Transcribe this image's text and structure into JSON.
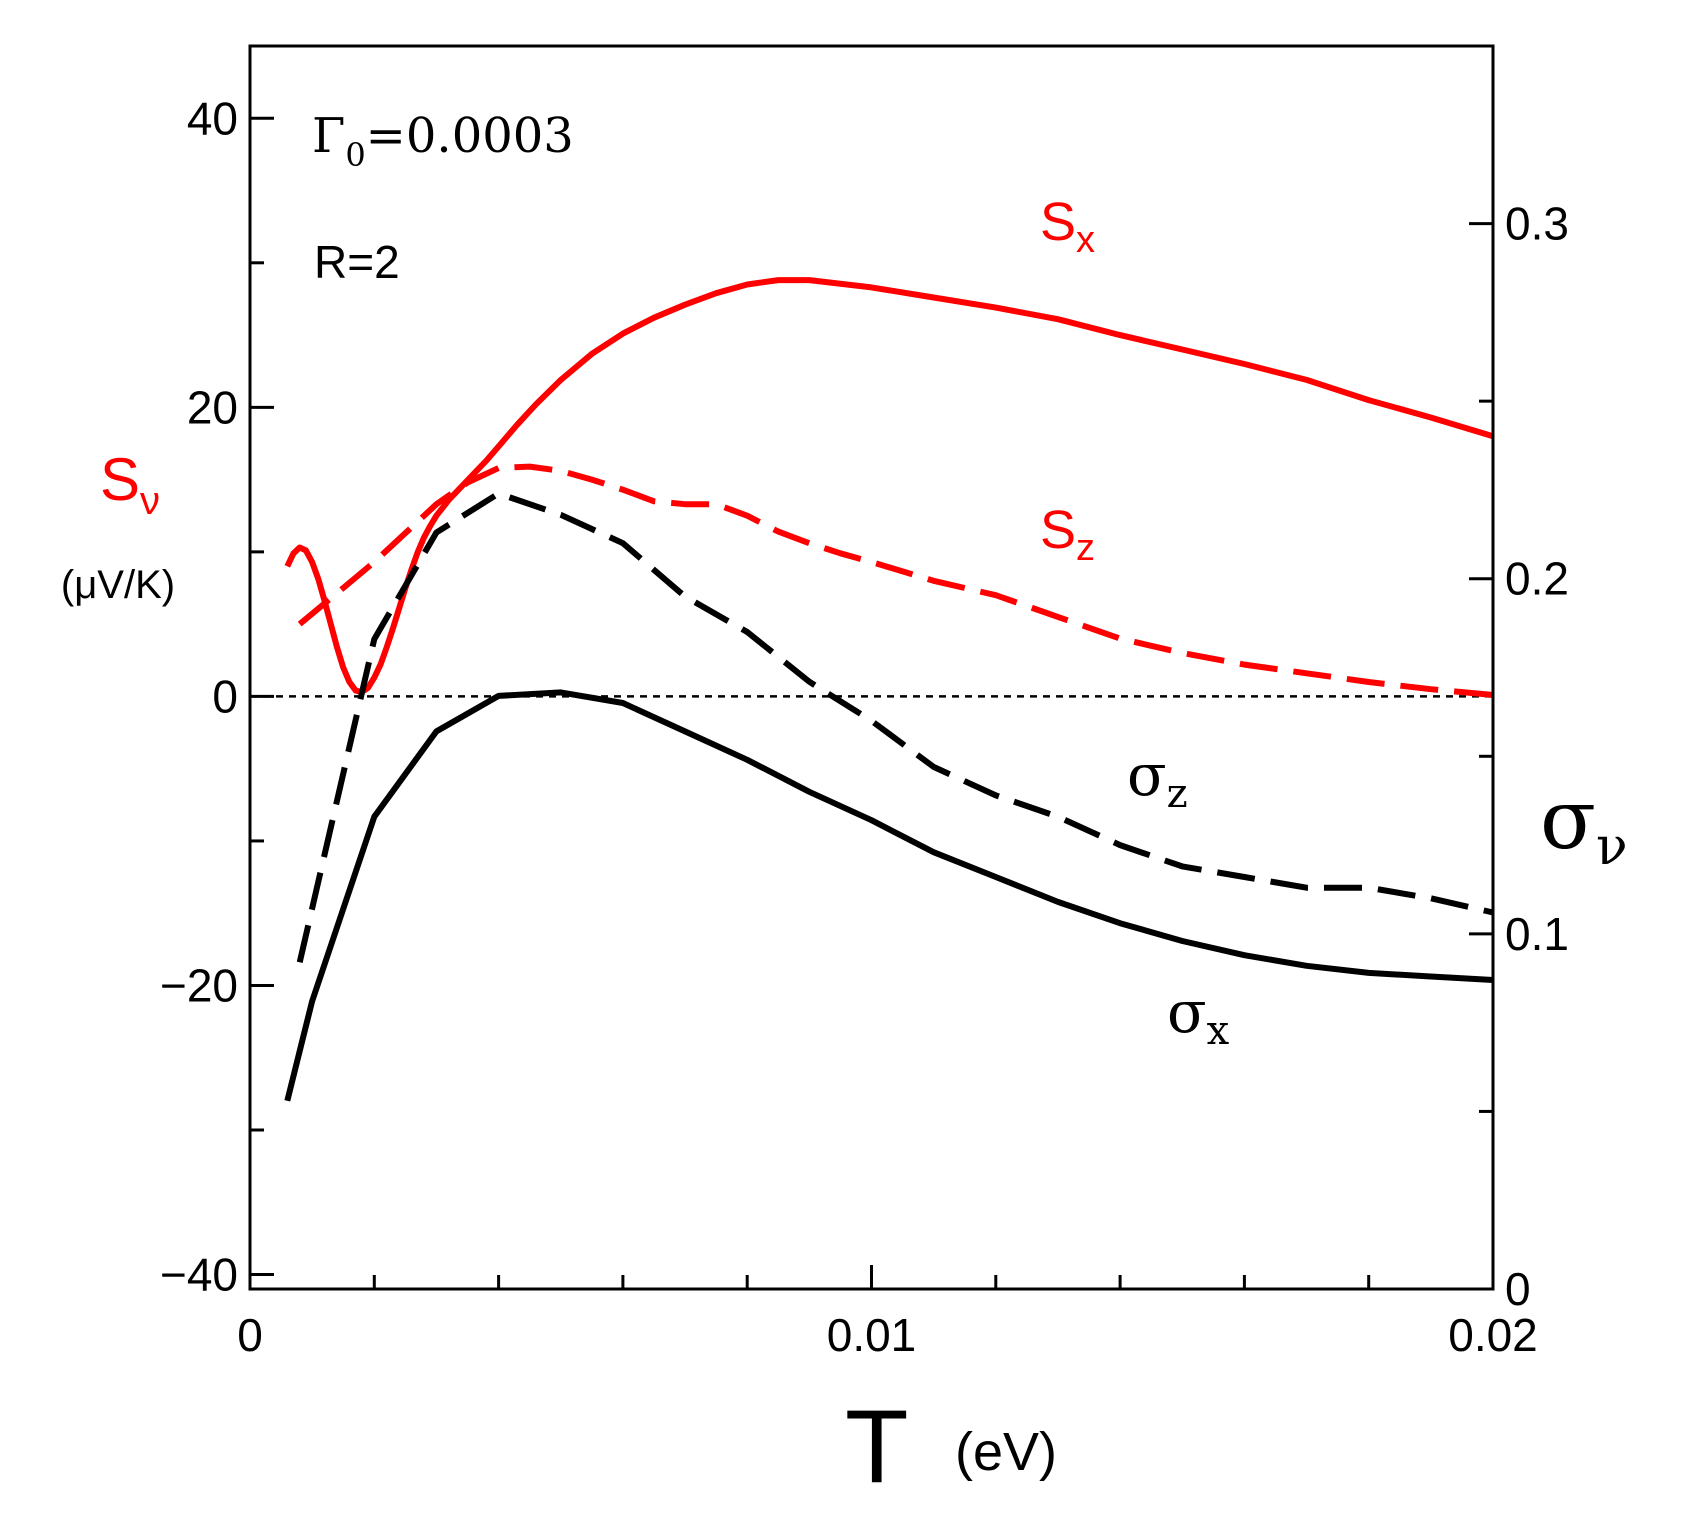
{
  "chart_data": {
    "type": "line",
    "x": {
      "label": "T",
      "unit": "(eV)",
      "range": [
        0,
        0.02
      ],
      "ticks": [
        0,
        0.01,
        0.02
      ],
      "tick_labels": [
        "0",
        "0.01",
        "0.02"
      ],
      "minor_step": 0.002
    },
    "y_left": {
      "label": "S",
      "label_sub": "ν",
      "unit": "(μV/K)",
      "range": [
        -41,
        45
      ],
      "ticks": [
        -40,
        -20,
        0,
        20,
        40
      ],
      "tick_labels": [
        "−40",
        "−20",
        "0",
        "20",
        "40"
      ],
      "minor_step": 10,
      "color": "#ff0000"
    },
    "y_right": {
      "label": "σ",
      "label_sub": "ν",
      "range": [
        0,
        0.35
      ],
      "ticks": [
        0,
        0.1,
        0.2,
        0.3
      ],
      "tick_labels": [
        "0",
        "0.1",
        "0.2",
        "0.3"
      ],
      "minor_step": 0.05,
      "color": "#000000"
    },
    "zero_line": {
      "y": 0,
      "style": "dotted"
    },
    "annotations": {
      "gamma_main": "Γ",
      "gamma_sub": "0",
      "gamma_value": "=0.0003",
      "r_text": "R=2"
    },
    "series": [
      {
        "name": "Sx",
        "label_main": "S",
        "label_sub": "x",
        "axis": "left",
        "color": "#ff0000",
        "dash": "solid",
        "x": [
          0.0006,
          0.0007,
          0.0008,
          0.0009,
          0.001,
          0.0011,
          0.0012,
          0.0013,
          0.0014,
          0.0015,
          0.0016,
          0.0017,
          0.0018,
          0.0019,
          0.002,
          0.0021,
          0.0022,
          0.0023,
          0.0024,
          0.0025,
          0.0026,
          0.0027,
          0.0028,
          0.0029,
          0.003,
          0.0032,
          0.0034,
          0.0036,
          0.0038,
          0.004,
          0.0043,
          0.0046,
          0.005,
          0.0055,
          0.006,
          0.0065,
          0.007,
          0.0075,
          0.008,
          0.0085,
          0.009,
          0.01,
          0.011,
          0.012,
          0.013,
          0.014,
          0.015,
          0.016,
          0.017,
          0.018,
          0.019,
          0.02
        ],
        "y": [
          9.0,
          9.9,
          10.3,
          10.1,
          9.3,
          8.1,
          6.6,
          5.0,
          3.4,
          2.0,
          1.0,
          0.4,
          0.3,
          0.6,
          1.3,
          2.2,
          3.4,
          4.7,
          6.1,
          7.5,
          8.8,
          10.0,
          11.0,
          11.8,
          12.5,
          13.6,
          14.5,
          15.4,
          16.3,
          17.3,
          18.8,
          20.2,
          21.9,
          23.7,
          25.1,
          26.2,
          27.1,
          27.9,
          28.5,
          28.8,
          28.8,
          28.3,
          27.6,
          26.9,
          26.1,
          25.0,
          24.0,
          23.0,
          21.9,
          20.5,
          19.3,
          18.0
        ]
      },
      {
        "name": "Sz",
        "label_main": "S",
        "label_sub": "z",
        "axis": "left",
        "color": "#ff0000",
        "dash": "dashed",
        "x": [
          0.0008,
          0.0015,
          0.002,
          0.0025,
          0.003,
          0.0035,
          0.004,
          0.0045,
          0.005,
          0.0055,
          0.006,
          0.0065,
          0.007,
          0.0075,
          0.008,
          0.0085,
          0.009,
          0.0095,
          0.01,
          0.011,
          0.012,
          0.013,
          0.014,
          0.015,
          0.016,
          0.017,
          0.018,
          0.019,
          0.02
        ],
        "y": [
          5.0,
          7.5,
          9.3,
          11.3,
          13.3,
          14.8,
          15.8,
          15.9,
          15.6,
          15.0,
          14.3,
          13.5,
          13.3,
          13.3,
          12.5,
          11.4,
          10.6,
          9.9,
          9.3,
          8.0,
          7.0,
          5.5,
          4.0,
          3.0,
          2.2,
          1.6,
          1.0,
          0.5,
          0.1
        ]
      },
      {
        "name": "σx",
        "label_main": "σ",
        "label_sub": "x",
        "axis": "right",
        "color": "#000000",
        "dash": "solid",
        "x": [
          0.0006,
          0.001,
          0.002,
          0.003,
          0.004,
          0.005,
          0.006,
          0.007,
          0.008,
          0.009,
          0.01,
          0.011,
          0.012,
          0.013,
          0.014,
          0.015,
          0.016,
          0.017,
          0.018,
          0.019,
          0.02
        ],
        "y": [
          0.053,
          0.081,
          0.133,
          0.157,
          0.167,
          0.168,
          0.165,
          0.157,
          0.149,
          0.14,
          0.132,
          0.123,
          0.116,
          0.109,
          0.103,
          0.098,
          0.094,
          0.091,
          0.089,
          0.088,
          0.087
        ]
      },
      {
        "name": "σz",
        "label_main": "σ",
        "label_sub": "z",
        "axis": "right",
        "color": "#000000",
        "dash": "dashed",
        "x": [
          0.0008,
          0.002,
          0.003,
          0.004,
          0.005,
          0.006,
          0.007,
          0.008,
          0.009,
          0.01,
          0.011,
          0.012,
          0.013,
          0.014,
          0.015,
          0.016,
          0.017,
          0.018,
          0.019,
          0.02
        ],
        "y": [
          0.092,
          0.183,
          0.213,
          0.224,
          0.218,
          0.21,
          0.195,
          0.185,
          0.171,
          0.16,
          0.147,
          0.139,
          0.133,
          0.125,
          0.119,
          0.116,
          0.113,
          0.113,
          0.11,
          0.106
        ]
      }
    ]
  }
}
